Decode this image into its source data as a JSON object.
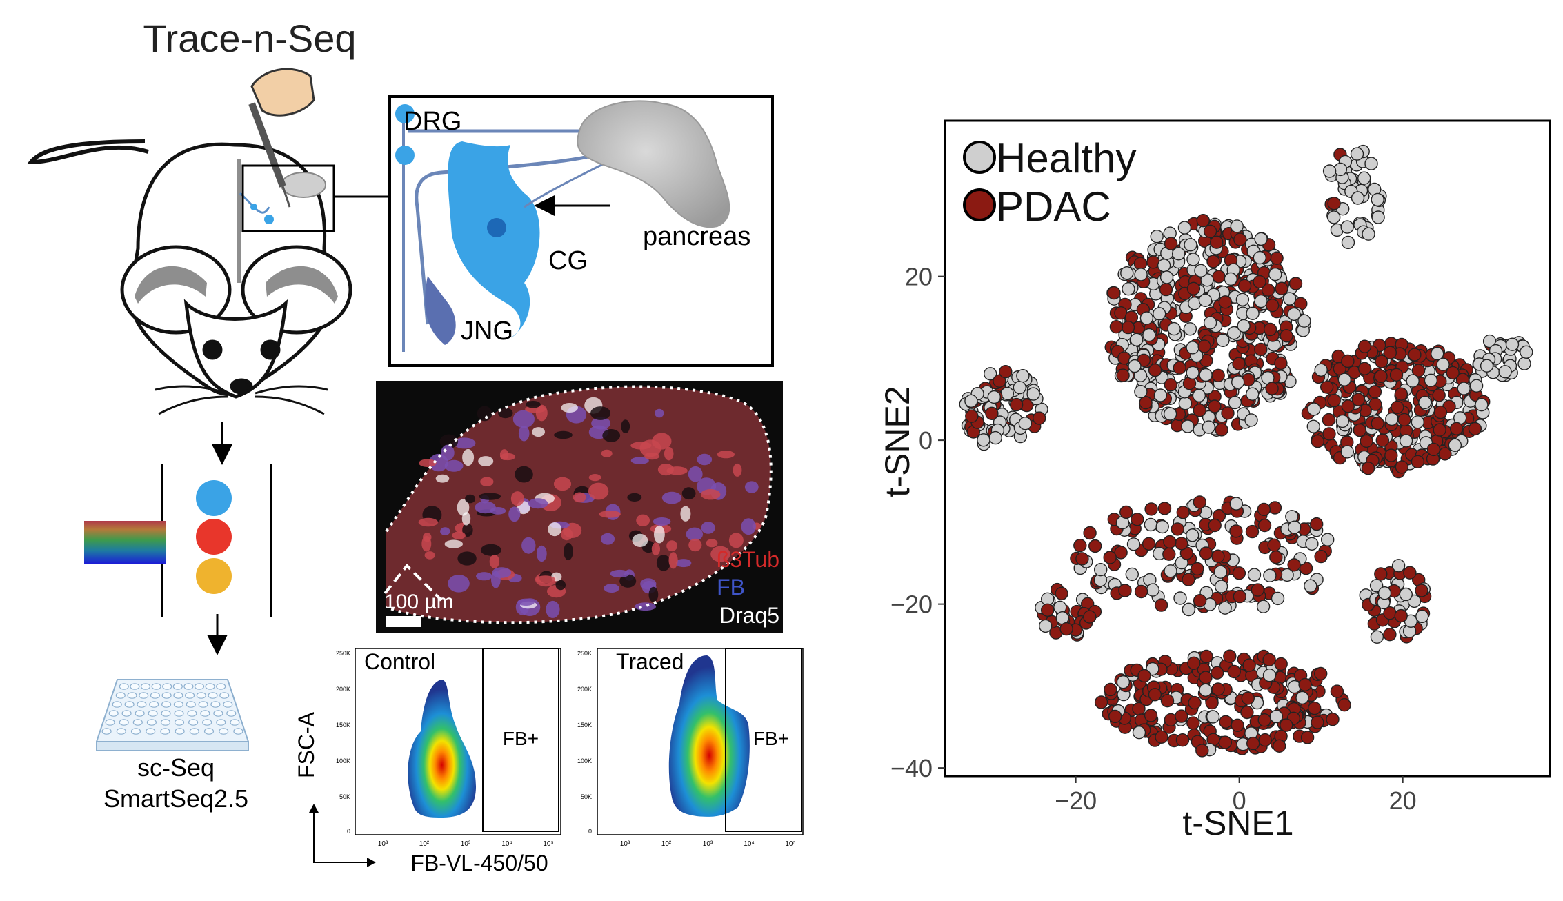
{
  "left_panel": {
    "title": "Trace-n-Seq",
    "zoom_labels": {
      "drg": "DRG",
      "cg": "CG",
      "jng": "JNG",
      "pancreas": "pancreas"
    },
    "micrograph": {
      "scale_bar": "100 µm",
      "channels": [
        {
          "name": "ß3Tub",
          "color": "#d42a2a"
        },
        {
          "name": "FB",
          "color": "#3f55c8"
        },
        {
          "name": "Draq5",
          "color": "#ffffff"
        }
      ]
    },
    "seq_labels": {
      "line1": "sc-Seq",
      "line2": "SmartSeq2.5"
    },
    "sort_dots": [
      {
        "color": "#3aa3e6"
      },
      {
        "color": "#e8362b"
      },
      {
        "color": "#efb32e"
      }
    ],
    "flow": {
      "y_axis_label": "FSC-A",
      "x_axis_label": "FB-VL-450/50",
      "gate_label": "FB+",
      "y_ticks": [
        "250K",
        "200K",
        "150K",
        "100K",
        "50K",
        "0"
      ],
      "x_ticks": [
        "10³",
        "10²",
        "10³",
        "10⁴",
        "10⁵"
      ],
      "panels": [
        {
          "title": "Control"
        },
        {
          "title": "Traced"
        }
      ]
    }
  },
  "chart_data": {
    "type": "scatter",
    "xlabel": "t-SNE1",
    "ylabel": "t-SNE2",
    "xticks": [
      -20,
      0,
      20
    ],
    "yticks": [
      20,
      0,
      -20,
      -40
    ],
    "xlim": [
      -36,
      38
    ],
    "ylim": [
      -41,
      39
    ],
    "legend_position": "top-left",
    "series": [
      {
        "name": "Healthy",
        "color": "#cfcfcf",
        "clusters": [
          {
            "cx": 14,
            "cy": 30,
            "rx": 3.5,
            "ry": 6,
            "n": 45,
            "frac": 0.95
          },
          {
            "cx": -4,
            "cy": 14,
            "rx": 12,
            "ry": 13,
            "n": 500,
            "frac": 0.55
          },
          {
            "cx": 32,
            "cy": 10,
            "rx": 3.5,
            "ry": 2.5,
            "n": 30,
            "frac": 0.95
          },
          {
            "cx": 19,
            "cy": 4,
            "rx": 11,
            "ry": 8,
            "n": 300,
            "frac": 0.35
          },
          {
            "cx": -29,
            "cy": 4,
            "rx": 5,
            "ry": 5,
            "n": 90,
            "frac": 0.75
          },
          {
            "cx": -4,
            "cy": -14,
            "rx": 16,
            "ry": 7,
            "n": 170,
            "frac": 0.45
          },
          {
            "cx": -21,
            "cy": -21,
            "rx": 3.5,
            "ry": 3,
            "n": 30,
            "frac": 0.4
          },
          {
            "cx": 19,
            "cy": -20,
            "rx": 4,
            "ry": 5,
            "n": 45,
            "frac": 0.5
          },
          {
            "cx": -2,
            "cy": -32,
            "rx": 15,
            "ry": 6,
            "n": 220,
            "frac": 0.15
          }
        ]
      },
      {
        "name": "PDAC",
        "color": "#8b1a12"
      }
    ]
  }
}
